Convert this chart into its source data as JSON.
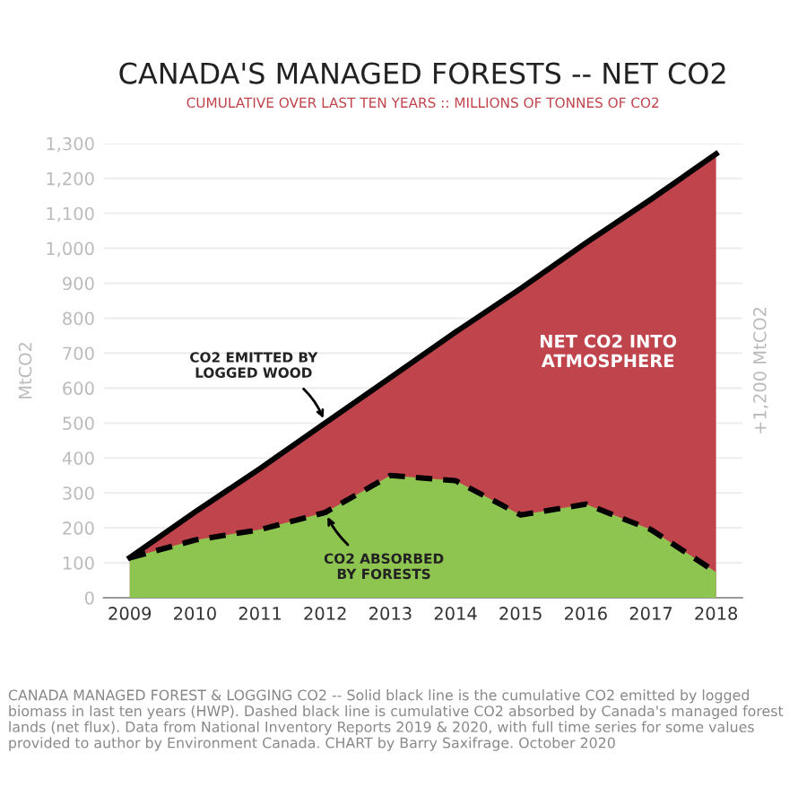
{
  "chart_data": {
    "type": "area",
    "title": "CANADA'S MANAGED FORESTS -- NET CO2",
    "subtitle": "CUMULATIVE OVER LAST TEN YEARS :: MILLIONS OF TONNES OF CO2",
    "ylabel": "MtCO2",
    "categories": [
      "2009",
      "2010",
      "2011",
      "2012",
      "2013",
      "2014",
      "2015",
      "2016",
      "2017",
      "2018"
    ],
    "series": [
      {
        "color": "#c0444c",
        "line_style": "solid",
        "values": [
          115,
          245,
          370,
          500,
          630,
          760,
          885,
          1015,
          1140,
          1270
        ]
      },
      {
        "color": "#8ec450",
        "line_style": "dashed",
        "values": [
          114,
          165,
          195,
          244,
          350,
          335,
          237,
          268,
          195,
          73
        ]
      }
    ],
    "ylim": [
      0,
      1300
    ],
    "yticks": [
      0,
      100,
      200,
      300,
      400,
      500,
      600,
      700,
      800,
      900,
      {
        "value": 1000,
        "label": "1,000"
      },
      {
        "value": 1100,
        "label": "1,100"
      },
      {
        "value": 1200,
        "label": "1,200"
      },
      {
        "value": 1300,
        "label": "1,300"
      }
    ],
    "grid": "y",
    "annotations": [
      {
        "text": "CO2 EMITTED BY\nLOGGED WOOD",
        "x": "2012",
        "y": 500
      },
      {
        "text": "CO2 ABSORBED\nBY FORESTS",
        "x": "2012",
        "y": 244
      },
      "NET CO2 INTO\nATMOSPHERE",
      "+1,200 MtCO2",
      "CANADA MANAGED FOREST & LOGGING CO2 -- Solid black line is the cumulative CO2 emitted by logged biomass in last ten years (HWP). Dashed black line is cumulative CO2 absorbed by Canada's managed forest lands (net flux). Data from National Inventory Reports 2019 & 2020, with full time series for some values provided to author by Environment Canada. CHART by Barry Saxifrage. October 2020"
    ]
  }
}
